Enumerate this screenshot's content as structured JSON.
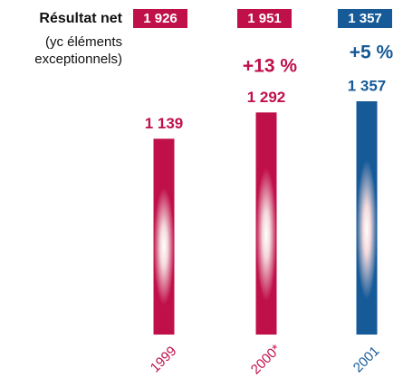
{
  "chart_data": {
    "type": "bar",
    "title": "Résultat net",
    "subtitle": [
      "(yc éléments",
      "exceptionnels)"
    ],
    "categories": [
      "1999",
      "2000*",
      "2001"
    ],
    "values": [
      1139,
      1292,
      1357
    ],
    "value_labels": [
      "1 139",
      "1 292",
      "1 357"
    ],
    "colors": [
      "#c0104a",
      "#c0104a",
      "#165a98"
    ],
    "totals": [
      1926,
      1951,
      1357
    ],
    "totals_labels": [
      "1 926",
      "1 951",
      "1 357"
    ],
    "annotations": [
      "+13 %",
      "+5 %"
    ]
  }
}
